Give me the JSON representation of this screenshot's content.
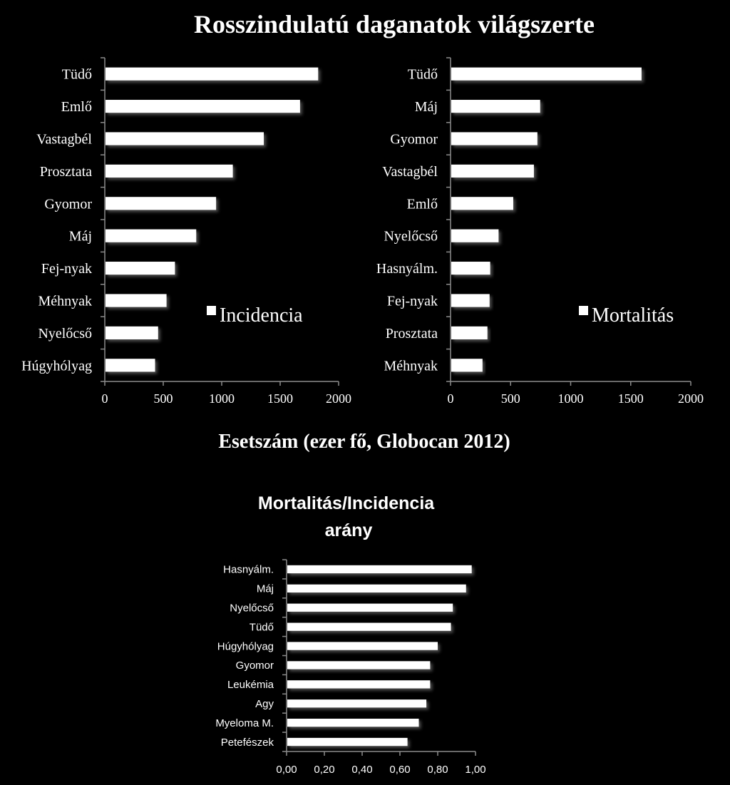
{
  "page": {
    "title": "Rosszindulatú daganatok világszerte",
    "shared_xlabel": "Esetszám (ezer fő, Globocan 2012)"
  },
  "colors": {
    "background": "#000000",
    "bar": "#ffffff",
    "text": "#ffffff"
  },
  "chart_data": [
    {
      "type": "bar",
      "orientation": "horizontal",
      "legend": "Incidencia",
      "legend_position": "right",
      "categories": [
        "Tüdő",
        "Emlő",
        "Vastagbél",
        "Prosztata",
        "Gyomor",
        "Máj",
        "Fej-nyak",
        "Méhnyak",
        "Nyelőcső",
        "Húgyhólyag"
      ],
      "values": [
        1825,
        1670,
        1360,
        1095,
        952,
        782,
        600,
        528,
        456,
        430
      ],
      "xlim": [
        0,
        2000
      ],
      "xticks": [
        "0",
        "500",
        "1000",
        "1500",
        "2000"
      ]
    },
    {
      "type": "bar",
      "orientation": "horizontal",
      "legend": "Mortalitás",
      "legend_position": "right",
      "categories": [
        "Tüdő",
        "Máj",
        "Gyomor",
        "Vastagbél",
        "Emlő",
        "Nyelőcső",
        "Hasnyálm.",
        "Fej-nyak",
        "Prosztata",
        "Méhnyak"
      ],
      "values": [
        1590,
        746,
        723,
        694,
        522,
        400,
        330,
        325,
        307,
        266
      ],
      "xlim": [
        0,
        2000
      ],
      "xticks": [
        "0",
        "500",
        "1000",
        "1500",
        "2000"
      ]
    },
    {
      "type": "bar",
      "orientation": "horizontal",
      "title": "Mortalitás/Incidencia arány",
      "title_lines": [
        "Mortalitás/Incidencia",
        "arány"
      ],
      "categories": [
        "Hasnyálm.",
        "Máj",
        "Nyelőcső",
        "Tüdő",
        "Húgyhólyag",
        "Gyomor",
        "Leukémia",
        "Agy",
        "Myeloma M.",
        "Petefészek"
      ],
      "values": [
        0.98,
        0.95,
        0.88,
        0.87,
        0.8,
        0.76,
        0.76,
        0.74,
        0.7,
        0.64
      ],
      "xlim": [
        0,
        1
      ],
      "xticks": [
        "0,00",
        "0,20",
        "0,40",
        "0,60",
        "0,80",
        "1,00"
      ]
    }
  ]
}
